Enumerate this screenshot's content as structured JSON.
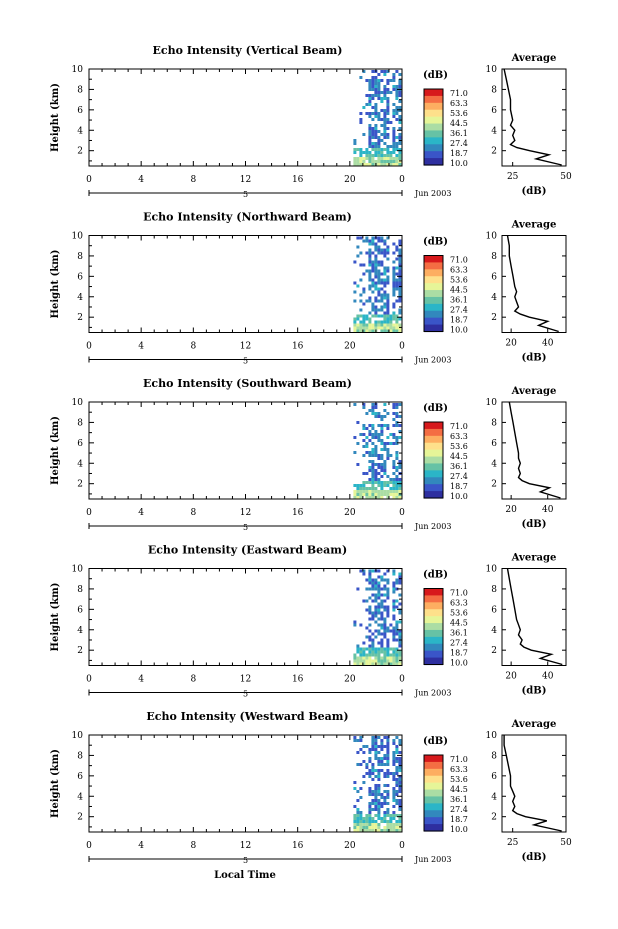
{
  "figure": {
    "xlabel": "Local Time",
    "date_label": "Jun 2003",
    "day_marker": "5",
    "colorbar_unit": "(dB)",
    "colorbar_ticks": [
      "71.0",
      "63.3",
      "53.6",
      "44.5",
      "36.1",
      "27.4",
      "18.7",
      "10.0"
    ],
    "colorbar_colors": [
      "#d7191c",
      "#f46d43",
      "#fdae61",
      "#fee08b",
      "#e6f598",
      "#abdda4",
      "#66c2a5",
      "#2bb5c7",
      "#3288bd",
      "#3a55c8",
      "#2e2fa0"
    ]
  },
  "chart_data": [
    {
      "type": "heatmap",
      "title": "Echo Intensity (Vertical Beam)",
      "ylabel": "Height (km)",
      "xticks": [
        "0",
        "4",
        "8",
        "12",
        "16",
        "20",
        "0"
      ],
      "yticks": [
        "2",
        "4",
        "6",
        "8",
        "10"
      ],
      "xlim": [
        0,
        24
      ],
      "ylim": [
        0.5,
        10
      ],
      "data_window": [
        20.5,
        24
      ],
      "profile": {
        "title": "Average",
        "xlabel": "(dB)",
        "xticks": [
          "25",
          "50"
        ],
        "xlim": [
          20,
          50
        ],
        "yticks": [
          "2",
          "4",
          "6",
          "8",
          "10"
        ],
        "heights": [
          0.6,
          1.2,
          1.6,
          2.0,
          2.3,
          2.6,
          3.0,
          3.5,
          4.0,
          4.5,
          5.0,
          6.0,
          7.0,
          8.0,
          9.0,
          10.0
        ],
        "values": [
          48,
          36,
          42,
          33,
          27,
          24,
          26,
          25,
          26,
          24,
          25,
          24,
          24,
          23,
          22,
          21
        ]
      }
    },
    {
      "type": "heatmap",
      "title": "Echo Intensity (Northward Beam)",
      "ylabel": "Height (km)",
      "xticks": [
        "0",
        "4",
        "8",
        "12",
        "16",
        "20",
        "0"
      ],
      "yticks": [
        "2",
        "4",
        "6",
        "8",
        "10"
      ],
      "xlim": [
        0,
        24
      ],
      "ylim": [
        0.5,
        10
      ],
      "data_window": [
        20.5,
        24
      ],
      "profile": {
        "title": "Average",
        "xlabel": "(dB)",
        "xticks": [
          "20",
          "40"
        ],
        "xlim": [
          15,
          50
        ],
        "yticks": [
          "2",
          "4",
          "6",
          "8",
          "10"
        ],
        "heights": [
          0.6,
          1.2,
          1.6,
          2.0,
          2.3,
          2.6,
          3.0,
          3.5,
          4.0,
          4.5,
          5.0,
          6.0,
          7.0,
          8.0,
          9.0,
          10.0
        ],
        "values": [
          46,
          35,
          40,
          30,
          25,
          22,
          24,
          23,
          22,
          23,
          22,
          21,
          20,
          19,
          19,
          18
        ]
      }
    },
    {
      "type": "heatmap",
      "title": "Echo Intensity (Southward Beam)",
      "ylabel": "Height (km)",
      "xticks": [
        "0",
        "4",
        "8",
        "12",
        "16",
        "20",
        "0"
      ],
      "yticks": [
        "2",
        "4",
        "6",
        "8",
        "10"
      ],
      "xlim": [
        0,
        24
      ],
      "ylim": [
        0.5,
        10
      ],
      "data_window": [
        20.5,
        24
      ],
      "profile": {
        "title": "Average",
        "xlabel": "(dB)",
        "xticks": [
          "20",
          "40"
        ],
        "xlim": [
          15,
          50
        ],
        "yticks": [
          "2",
          "4",
          "6",
          "8",
          "10"
        ],
        "heights": [
          0.6,
          1.2,
          1.6,
          2.0,
          2.3,
          2.6,
          3.0,
          3.5,
          4.0,
          4.5,
          5.0,
          6.0,
          7.0,
          8.0,
          9.0,
          10.0
        ],
        "values": [
          47,
          36,
          41,
          30,
          26,
          24,
          25,
          24,
          25,
          24,
          24,
          23,
          22,
          21,
          20,
          19
        ]
      }
    },
    {
      "type": "heatmap",
      "title": "Echo Intensity (Eastward Beam)",
      "ylabel": "Height (km)",
      "xticks": [
        "0",
        "4",
        "8",
        "12",
        "16",
        "20",
        "0"
      ],
      "yticks": [
        "2",
        "4",
        "6",
        "8",
        "10"
      ],
      "xlim": [
        0,
        24
      ],
      "ylim": [
        0.5,
        10
      ],
      "data_window": [
        20.5,
        24
      ],
      "profile": {
        "title": "Average",
        "xlabel": "(dB)",
        "xticks": [
          "20",
          "40"
        ],
        "xlim": [
          15,
          50
        ],
        "yticks": [
          "2",
          "4",
          "6",
          "8",
          "10"
        ],
        "heights": [
          0.6,
          1.2,
          1.6,
          2.0,
          2.3,
          2.6,
          3.0,
          3.5,
          4.0,
          4.5,
          5.0,
          6.0,
          7.0,
          8.0,
          9.0,
          10.0
        ],
        "values": [
          48,
          36,
          42,
          31,
          27,
          25,
          26,
          24,
          25,
          24,
          23,
          22,
          21,
          20,
          19,
          18
        ]
      }
    },
    {
      "type": "heatmap",
      "title": "Echo Intensity (Westward Beam)",
      "ylabel": "Height (km)",
      "xticks": [
        "0",
        "4",
        "8",
        "12",
        "16",
        "20",
        "0"
      ],
      "yticks": [
        "2",
        "4",
        "6",
        "8",
        "10"
      ],
      "xlim": [
        0,
        24
      ],
      "ylim": [
        0.5,
        10
      ],
      "data_window": [
        20.5,
        24
      ],
      "profile": {
        "title": "Average",
        "xlabel": "(dB)",
        "xticks": [
          "25",
          "50"
        ],
        "xlim": [
          20,
          50
        ],
        "yticks": [
          "2",
          "4",
          "6",
          "8",
          "10"
        ],
        "heights": [
          0.6,
          1.2,
          1.6,
          2.0,
          2.3,
          2.6,
          3.0,
          3.5,
          4.0,
          4.5,
          5.0,
          6.0,
          7.0,
          8.0,
          9.0,
          10.0
        ],
        "values": [
          48,
          35,
          41,
          31,
          27,
          25,
          26,
          25,
          26,
          25,
          24,
          24,
          23,
          22,
          21,
          21
        ]
      }
    }
  ]
}
